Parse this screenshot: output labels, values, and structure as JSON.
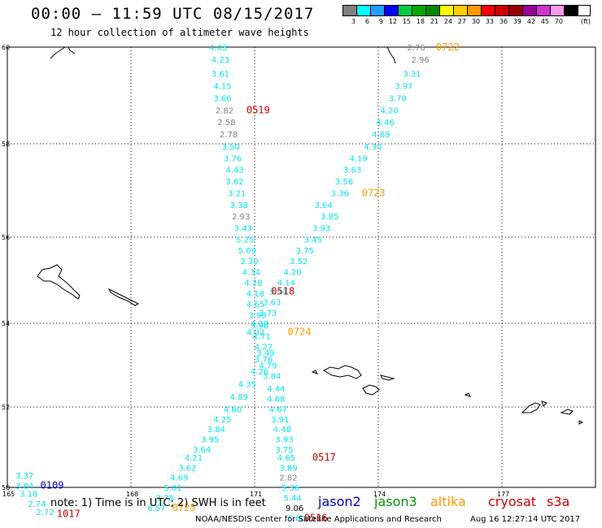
{
  "header": {
    "title": "00:00 – 11:59 UTC 08/15/2017",
    "subtitle": "12 hour collection of altimeter wave heights"
  },
  "legend": {
    "unit": "(ft)",
    "bins": [
      {
        "label": "3",
        "color": "#808080"
      },
      {
        "label": "6",
        "color": "#00ffff"
      },
      {
        "label": "9",
        "color": "#1ea0ff"
      },
      {
        "label": "12",
        "color": "#0000ff"
      },
      {
        "label": "15",
        "color": "#00cc44"
      },
      {
        "label": "18",
        "color": "#00aa00"
      },
      {
        "label": "21",
        "color": "#008800"
      },
      {
        "label": "24",
        "color": "#ffff00"
      },
      {
        "label": "27",
        "color": "#ffcc00"
      },
      {
        "label": "30",
        "color": "#ff9900"
      },
      {
        "label": "33",
        "color": "#ff0000"
      },
      {
        "label": "36",
        "color": "#cc0000"
      },
      {
        "label": "39",
        "color": "#990000"
      },
      {
        "label": "42",
        "color": "#990099"
      },
      {
        "label": "45",
        "color": "#cc33cc"
      },
      {
        "label": "70",
        "color": "#ff99ee"
      },
      {
        "label": "",
        "color": "#000000"
      }
    ]
  },
  "axes": {
    "lon_labels": [
      "165",
      "168",
      "171",
      "174",
      "177"
    ],
    "lat_labels": [
      "60",
      "58",
      "56",
      "54",
      "52",
      "50"
    ]
  },
  "colors": {
    "gray": "#808080",
    "cyan": "#00e5ee",
    "jason2": "#0000cc",
    "jason3": "#009900",
    "altika": "#ff9900",
    "cryosat": "#cc0000",
    "s3a": "#cc0000"
  },
  "tracks": [
    {
      "name": "track-a",
      "points": [
        {
          "lon": 170.2,
          "lat": 60.0
        },
        {
          "lon": 171.0,
          "lat": 53.9
        },
        {
          "lon": 170.7,
          "lat": 50.0
        }
      ]
    },
    {
      "name": "track-b",
      "points": [
        {
          "lon": 175.0,
          "lat": 60.0
        },
        {
          "lon": 171.5,
          "lat": 54.3
        },
        {
          "lon": 169.2,
          "lat": 50.0
        }
      ]
    }
  ],
  "wave_labels": [
    {
      "text": "2.76",
      "lon": 174.7,
      "lat": 60.0,
      "c": "gray"
    },
    {
      "text": "2.96",
      "lon": 174.8,
      "lat": 59.75,
      "c": "gray"
    },
    {
      "text": "3.31",
      "lon": 174.6,
      "lat": 59.45,
      "c": "cyan"
    },
    {
      "text": "3.97",
      "lon": 174.4,
      "lat": 59.2,
      "c": "cyan"
    },
    {
      "text": "3.70",
      "lon": 174.25,
      "lat": 58.95,
      "c": "cyan"
    },
    {
      "text": "4.20",
      "lon": 174.05,
      "lat": 58.7,
      "c": "cyan"
    },
    {
      "text": "4.46",
      "lon": 173.95,
      "lat": 58.45,
      "c": "cyan"
    },
    {
      "text": "4.89",
      "lon": 173.85,
      "lat": 58.2,
      "c": "cyan"
    },
    {
      "text": "4.30",
      "lon": 173.65,
      "lat": 57.95,
      "c": "cyan"
    },
    {
      "text": "4.19",
      "lon": 173.3,
      "lat": 57.7,
      "c": "cyan"
    },
    {
      "text": "3.63",
      "lon": 173.15,
      "lat": 57.45,
      "c": "cyan"
    },
    {
      "text": "3.56",
      "lon": 172.95,
      "lat": 57.2,
      "c": "cyan"
    },
    {
      "text": "3.36",
      "lon": 172.85,
      "lat": 56.95,
      "c": "cyan"
    },
    {
      "text": "3.64",
      "lon": 172.45,
      "lat": 56.7,
      "c": "cyan"
    },
    {
      "text": "3.85",
      "lon": 172.6,
      "lat": 56.45,
      "c": "cyan"
    },
    {
      "text": "3.93",
      "lon": 172.4,
      "lat": 56.2,
      "c": "cyan"
    },
    {
      "text": "3.45",
      "lon": 172.2,
      "lat": 55.95,
      "c": "cyan"
    },
    {
      "text": "3.75",
      "lon": 172.0,
      "lat": 55.7,
      "c": "cyan"
    },
    {
      "text": "3.52",
      "lon": 171.85,
      "lat": 55.45,
      "c": "cyan"
    },
    {
      "text": "4.20",
      "lon": 171.7,
      "lat": 55.2,
      "c": "cyan"
    },
    {
      "text": "4.14",
      "lon": 171.55,
      "lat": 54.95,
      "c": "cyan"
    },
    {
      "text": "3.94",
      "lon": 171.35,
      "lat": 54.75,
      "c": "cyan"
    },
    {
      "text": "3.63",
      "lon": 171.2,
      "lat": 54.5,
      "c": "cyan"
    },
    {
      "text": "3.73",
      "lon": 171.1,
      "lat": 54.25,
      "c": "cyan"
    },
    {
      "text": "4.22",
      "lon": 170.9,
      "lat": 54.0,
      "c": "cyan"
    },
    {
      "text": "4.02",
      "lon": 170.8,
      "lat": 53.8,
      "c": "cyan"
    },
    {
      "text": "4.03",
      "lon": 169.9,
      "lat": 60.0,
      "c": "cyan"
    },
    {
      "text": "4.23",
      "lon": 169.95,
      "lat": 59.75,
      "c": "cyan"
    },
    {
      "text": "3.61",
      "lon": 169.95,
      "lat": 59.45,
      "c": "cyan"
    },
    {
      "text": "4.15",
      "lon": 170.0,
      "lat": 59.2,
      "c": "cyan"
    },
    {
      "text": "3.66",
      "lon": 170.0,
      "lat": 58.95,
      "c": "cyan"
    },
    {
      "text": "2.82",
      "lon": 170.05,
      "lat": 58.7,
      "c": "gray"
    },
    {
      "text": "2.58",
      "lon": 170.1,
      "lat": 58.45,
      "c": "gray"
    },
    {
      "text": "2.78",
      "lon": 170.15,
      "lat": 58.2,
      "c": "gray"
    },
    {
      "text": "3.50",
      "lon": 170.2,
      "lat": 57.95,
      "c": "cyan"
    },
    {
      "text": "3.76",
      "lon": 170.25,
      "lat": 57.7,
      "c": "cyan"
    },
    {
      "text": "4.43",
      "lon": 170.3,
      "lat": 57.45,
      "c": "cyan"
    },
    {
      "text": "3.62",
      "lon": 170.3,
      "lat": 57.2,
      "c": "cyan"
    },
    {
      "text": "3.21",
      "lon": 170.35,
      "lat": 56.95,
      "c": "cyan"
    },
    {
      "text": "3.38",
      "lon": 170.4,
      "lat": 56.7,
      "c": "cyan"
    },
    {
      "text": "2.93",
      "lon": 170.45,
      "lat": 56.45,
      "c": "gray"
    },
    {
      "text": "3.43",
      "lon": 170.5,
      "lat": 56.2,
      "c": "cyan"
    },
    {
      "text": "5.25",
      "lon": 170.55,
      "lat": 55.95,
      "c": "cyan"
    },
    {
      "text": "5.09",
      "lon": 170.6,
      "lat": 55.7,
      "c": "cyan"
    },
    {
      "text": "3.30",
      "lon": 170.65,
      "lat": 55.45,
      "c": "cyan"
    },
    {
      "text": "4.34",
      "lon": 170.7,
      "lat": 55.2,
      "c": "cyan"
    },
    {
      "text": "4.28",
      "lon": 170.75,
      "lat": 54.95,
      "c": "cyan"
    },
    {
      "text": "4.18",
      "lon": 170.8,
      "lat": 54.7,
      "c": "cyan"
    },
    {
      "text": "4.65",
      "lon": 170.8,
      "lat": 54.45,
      "c": "cyan"
    },
    {
      "text": "3.93",
      "lon": 170.85,
      "lat": 54.2,
      "c": "cyan"
    },
    {
      "text": "3.90",
      "lon": 170.9,
      "lat": 53.95,
      "c": "cyan"
    },
    {
      "text": "4.71",
      "lon": 170.95,
      "lat": 53.7,
      "c": "cyan"
    },
    {
      "text": "4.27",
      "lon": 171.0,
      "lat": 53.45,
      "c": "cyan"
    },
    {
      "text": "3.49",
      "lon": 171.05,
      "lat": 53.3,
      "c": "cyan"
    },
    {
      "text": "3.76",
      "lon": 171.0,
      "lat": 53.15,
      "c": "cyan"
    },
    {
      "text": "4.79",
      "lon": 171.1,
      "lat": 53.0,
      "c": "cyan"
    },
    {
      "text": "4.26",
      "lon": 170.9,
      "lat": 52.85,
      "c": "cyan"
    },
    {
      "text": "3.84",
      "lon": 171.2,
      "lat": 52.75,
      "c": "cyan"
    },
    {
      "text": "4.35",
      "lon": 170.6,
      "lat": 52.55,
      "c": "cyan"
    },
    {
      "text": "4.44",
      "lon": 171.3,
      "lat": 52.45,
      "c": "cyan"
    },
    {
      "text": "4.89",
      "lon": 170.4,
      "lat": 52.25,
      "c": "cyan"
    },
    {
      "text": "4.68",
      "lon": 171.3,
      "lat": 52.2,
      "c": "cyan"
    },
    {
      "text": "4.60",
      "lon": 170.25,
      "lat": 51.95,
      "c": "cyan"
    },
    {
      "text": "4.67",
      "lon": 171.35,
      "lat": 51.95,
      "c": "cyan"
    },
    {
      "text": "4.25",
      "lon": 170.0,
      "lat": 51.7,
      "c": "cyan"
    },
    {
      "text": "3.91",
      "lon": 171.4,
      "lat": 51.7,
      "c": "cyan"
    },
    {
      "text": "3.84",
      "lon": 169.85,
      "lat": 51.45,
      "c": "cyan"
    },
    {
      "text": "4.48",
      "lon": 171.45,
      "lat": 51.45,
      "c": "cyan"
    },
    {
      "text": "3.95",
      "lon": 169.7,
      "lat": 51.2,
      "c": "cyan"
    },
    {
      "text": "3.93",
      "lon": 171.5,
      "lat": 51.2,
      "c": "cyan"
    },
    {
      "text": "3.64",
      "lon": 169.5,
      "lat": 50.95,
      "c": "cyan"
    },
    {
      "text": "3.75",
      "lon": 171.5,
      "lat": 50.95,
      "c": "cyan"
    },
    {
      "text": "4.21",
      "lon": 169.3,
      "lat": 50.75,
      "c": "cyan"
    },
    {
      "text": "4.65",
      "lon": 171.55,
      "lat": 50.75,
      "c": "cyan"
    },
    {
      "text": "3.62",
      "lon": 169.15,
      "lat": 50.5,
      "c": "cyan"
    },
    {
      "text": "3.89",
      "lon": 171.6,
      "lat": 50.5,
      "c": "cyan"
    },
    {
      "text": "4.69",
      "lon": 168.95,
      "lat": 50.25,
      "c": "cyan"
    },
    {
      "text": "2.82",
      "lon": 171.6,
      "lat": 50.25,
      "c": "gray"
    },
    {
      "text": "5.01",
      "lon": 168.8,
      "lat": 50.0,
      "c": "cyan"
    },
    {
      "text": "5.36",
      "lon": 171.65,
      "lat": 50.0,
      "c": "cyan"
    },
    {
      "text": "3.78",
      "lon": 168.6,
      "lat": 49.75,
      "c": "cyan"
    },
    {
      "text": "5.44",
      "lon": 171.7,
      "lat": 49.75,
      "c": "cyan"
    },
    {
      "text": "6.57",
      "lon": 168.4,
      "lat": 49.5,
      "c": "cyan"
    },
    {
      "text": "9.06",
      "lon": 171.75,
      "lat": 49.5,
      "c": "black"
    },
    {
      "text": "5.60",
      "lon": 171.8,
      "lat": 49.25,
      "c": "cyan"
    },
    {
      "text": "3.37",
      "lon": 165.2,
      "lat": 50.3,
      "c": "cyan"
    },
    {
      "text": "3.84",
      "lon": 165.2,
      "lat": 50.05,
      "c": "cyan"
    },
    {
      "text": "3.18",
      "lon": 165.3,
      "lat": 49.85,
      "c": "cyan"
    },
    {
      "text": "2.74",
      "lon": 165.5,
      "lat": 49.6,
      "c": "cyan"
    },
    {
      "text": "2.72",
      "lon": 165.7,
      "lat": 49.4,
      "c": "cyan"
    }
  ],
  "time_labels": [
    {
      "text": "0722",
      "lon": 175.4,
      "lat": 60.0,
      "c": "altika"
    },
    {
      "text": "0519",
      "lon": 170.8,
      "lat": 58.7,
      "c": "cryosat"
    },
    {
      "text": "0723",
      "lon": 173.6,
      "lat": 56.95,
      "c": "altika"
    },
    {
      "text": "0518",
      "lon": 171.4,
      "lat": 54.75,
      "c": "cryosat"
    },
    {
      "text": "0724",
      "lon": 171.8,
      "lat": 53.8,
      "c": "altika"
    },
    {
      "text": "0517",
      "lon": 172.4,
      "lat": 50.75,
      "c": "cryosat"
    },
    {
      "text": "0725",
      "lon": 169.0,
      "lat": 49.5,
      "c": "altika"
    },
    {
      "text": "0516",
      "lon": 172.2,
      "lat": 49.25,
      "c": "cryosat"
    },
    {
      "text": "0109",
      "lon": 165.8,
      "lat": 50.05,
      "c": "jason2"
    },
    {
      "text": "1017",
      "lon": 166.2,
      "lat": 49.35,
      "c": "cryosat"
    }
  ],
  "footer": {
    "note": "note: 1) Time is in UTC; 2) SWH is in feet",
    "sat_jason2": "jason2",
    "sat_jason3": "jason3",
    "sat_altika": "altika",
    "sat_cryosat": "cryosat",
    "sat_s3a": "s3a",
    "agency": "NOAA/NESDIS Center for Satellite Applications and Research",
    "timestamp": "Aug 16 12:27:14 UTC 2017"
  }
}
